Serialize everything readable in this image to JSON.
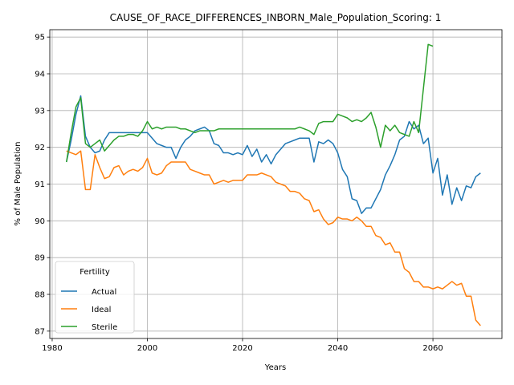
{
  "chart_data": {
    "type": "line",
    "title": "CAUSE_OF_RACE_DIFFERENCES_INBORN_Male_Population_Scoring: 1",
    "xlabel": "Years",
    "ylabel": "% of Male Population",
    "xlim": [
      1979.5,
      2074.5
    ],
    "ylim": [
      86.8,
      95.2
    ],
    "xticks": [
      1980,
      2000,
      2020,
      2040,
      2060
    ],
    "yticks": [
      87,
      88,
      89,
      90,
      91,
      92,
      93,
      94,
      95
    ],
    "grid": true,
    "legend": {
      "title": "Fertility",
      "location": "lower-left"
    },
    "series": [
      {
        "name": "Actual",
        "color": "#1f77b4",
        "x": [
          1983,
          1984,
          1985,
          1986,
          1987,
          1988,
          1989,
          1990,
          1991,
          1992,
          1993,
          1994,
          1995,
          1996,
          1997,
          1998,
          1999,
          2000,
          2001,
          2002,
          2003,
          2004,
          2005,
          2006,
          2007,
          2008,
          2009,
          2010,
          2011,
          2012,
          2013,
          2014,
          2015,
          2016,
          2017,
          2018,
          2019,
          2020,
          2021,
          2022,
          2023,
          2024,
          2025,
          2026,
          2027,
          2028,
          2029,
          2030,
          2031,
          2032,
          2033,
          2034,
          2035,
          2036,
          2037,
          2038,
          2039,
          2040,
          2041,
          2042,
          2043,
          2044,
          2045,
          2046,
          2047,
          2048,
          2049,
          2050,
          2051,
          2052,
          2053,
          2054,
          2055,
          2056,
          2057,
          2058,
          2059,
          2060,
          2061,
          2062,
          2063,
          2064,
          2065,
          2066,
          2067,
          2068,
          2069,
          2070
        ],
        "values": [
          91.6,
          92.2,
          92.9,
          93.4,
          92.3,
          92.0,
          91.85,
          91.9,
          92.2,
          92.4,
          92.4,
          92.4,
          92.4,
          92.4,
          92.4,
          92.4,
          92.4,
          92.4,
          92.25,
          92.1,
          92.05,
          92.0,
          92.0,
          91.7,
          92.0,
          92.2,
          92.3,
          92.45,
          92.5,
          92.55,
          92.45,
          92.1,
          92.05,
          91.85,
          91.85,
          91.8,
          91.85,
          91.8,
          92.05,
          91.75,
          91.95,
          91.6,
          91.8,
          91.55,
          91.8,
          91.95,
          92.1,
          92.15,
          92.2,
          92.25,
          92.25,
          92.25,
          91.6,
          92.15,
          92.1,
          92.2,
          92.1,
          91.85,
          91.4,
          91.2,
          90.6,
          90.55,
          90.2,
          90.35,
          90.35,
          90.6,
          90.85,
          91.25,
          91.5,
          91.8,
          92.2,
          92.3,
          92.7,
          92.5,
          92.6,
          92.1,
          92.25,
          91.3,
          91.7,
          90.7,
          91.25,
          90.45,
          90.9,
          90.55,
          90.95,
          90.9,
          91.2,
          91.3
        ]
      },
      {
        "name": "Ideal",
        "color": "#ff7f0e",
        "x": [
          1983,
          1984,
          1985,
          1986,
          1987,
          1988,
          1989,
          1990,
          1991,
          1992,
          1993,
          1994,
          1995,
          1996,
          1997,
          1998,
          1999,
          2000,
          2001,
          2002,
          2003,
          2004,
          2005,
          2006,
          2007,
          2008,
          2009,
          2010,
          2011,
          2012,
          2013,
          2014,
          2015,
          2016,
          2017,
          2018,
          2019,
          2020,
          2021,
          2022,
          2023,
          2024,
          2025,
          2026,
          2027,
          2028,
          2029,
          2030,
          2031,
          2032,
          2033,
          2034,
          2035,
          2036,
          2037,
          2038,
          2039,
          2040,
          2041,
          2042,
          2043,
          2044,
          2045,
          2046,
          2047,
          2048,
          2049,
          2050,
          2051,
          2052,
          2053,
          2054,
          2055,
          2056,
          2057,
          2058,
          2059,
          2060,
          2061,
          2062,
          2063,
          2064,
          2065,
          2066,
          2067,
          2068,
          2069,
          2070
        ],
        "values": [
          91.9,
          91.85,
          91.8,
          91.9,
          90.85,
          90.85,
          91.8,
          91.45,
          91.15,
          91.2,
          91.45,
          91.5,
          91.25,
          91.35,
          91.4,
          91.35,
          91.45,
          91.7,
          91.3,
          91.25,
          91.3,
          91.5,
          91.6,
          91.6,
          91.6,
          91.6,
          91.4,
          91.35,
          91.3,
          91.25,
          91.25,
          91.0,
          91.05,
          91.1,
          91.05,
          91.1,
          91.1,
          91.1,
          91.25,
          91.25,
          91.25,
          91.3,
          91.25,
          91.2,
          91.05,
          91.0,
          90.95,
          90.8,
          90.8,
          90.75,
          90.6,
          90.55,
          90.25,
          90.3,
          90.05,
          89.9,
          89.95,
          90.1,
          90.05,
          90.05,
          90.0,
          90.1,
          90.0,
          89.85,
          89.85,
          89.6,
          89.55,
          89.35,
          89.4,
          89.15,
          89.15,
          88.7,
          88.6,
          88.35,
          88.35,
          88.2,
          88.2,
          88.15,
          88.2,
          88.15,
          88.25,
          88.35,
          88.25,
          88.3,
          87.95,
          87.95,
          87.3,
          87.15
        ]
      },
      {
        "name": "Sterile",
        "color": "#2ca02c",
        "x": [
          1983,
          1984,
          1985,
          1986,
          1987,
          1988,
          1989,
          1990,
          1991,
          1992,
          1993,
          1994,
          1995,
          1996,
          1997,
          1998,
          1999,
          2000,
          2001,
          2002,
          2003,
          2004,
          2005,
          2006,
          2007,
          2008,
          2009,
          2010,
          2011,
          2012,
          2013,
          2014,
          2015,
          2016,
          2017,
          2018,
          2019,
          2020,
          2021,
          2022,
          2023,
          2024,
          2025,
          2026,
          2027,
          2028,
          2029,
          2030,
          2031,
          2032,
          2033,
          2034,
          2035,
          2036,
          2037,
          2038,
          2039,
          2040,
          2041,
          2042,
          2043,
          2044,
          2045,
          2046,
          2047,
          2048,
          2049,
          2050,
          2051,
          2052,
          2053,
          2054,
          2055,
          2056,
          2057,
          2058,
          2059,
          2060
        ],
        "values": [
          91.6,
          92.4,
          93.1,
          93.35,
          92.1,
          92.0,
          92.1,
          92.2,
          91.9,
          92.05,
          92.2,
          92.3,
          92.3,
          92.35,
          92.35,
          92.3,
          92.45,
          92.7,
          92.5,
          92.55,
          92.5,
          92.55,
          92.55,
          92.55,
          92.5,
          92.5,
          92.45,
          92.4,
          92.45,
          92.45,
          92.45,
          92.45,
          92.5,
          92.5,
          92.5,
          92.5,
          92.5,
          92.5,
          92.5,
          92.5,
          92.5,
          92.5,
          92.5,
          92.5,
          92.5,
          92.5,
          92.5,
          92.5,
          92.5,
          92.55,
          92.5,
          92.45,
          92.35,
          92.65,
          92.7,
          92.7,
          92.7,
          92.9,
          92.85,
          92.8,
          92.7,
          92.75,
          92.7,
          92.8,
          92.95,
          92.55,
          92.0,
          92.6,
          92.45,
          92.6,
          92.4,
          92.35,
          92.3,
          92.7,
          92.4,
          93.6,
          94.8,
          94.75
        ]
      }
    ]
  }
}
